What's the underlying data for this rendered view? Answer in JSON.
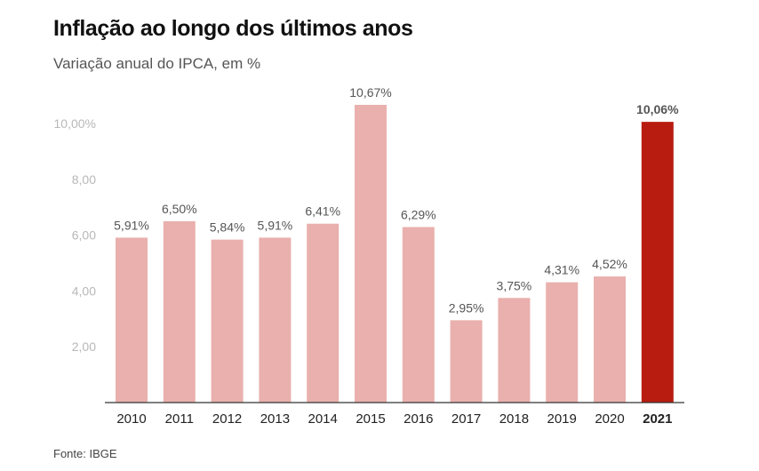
{
  "chart_data": {
    "type": "bar",
    "title": "Inflação ao longo dos últimos anos",
    "subtitle": "Variação anual do IPCA, em %",
    "source": "Fonte: IBGE",
    "categories": [
      "2010",
      "2011",
      "2012",
      "2013",
      "2014",
      "2015",
      "2016",
      "2017",
      "2018",
      "2019",
      "2020",
      "2021"
    ],
    "values": [
      5.91,
      6.5,
      5.84,
      5.91,
      6.41,
      10.67,
      6.29,
      2.95,
      3.75,
      4.31,
      4.52,
      10.06
    ],
    "value_labels": [
      "5,91%",
      "6,50%",
      "5,84%",
      "5,91%",
      "6,41%",
      "10,67%",
      "6,29%",
      "2,95%",
      "3,75%",
      "4,31%",
      "4,52%",
      "10,06%"
    ],
    "yticks": [
      2,
      4,
      6,
      8,
      10
    ],
    "ytick_labels": [
      "2,00",
      "4,00",
      "6,00",
      "8,00",
      "10,00%"
    ],
    "ylim": [
      0,
      11
    ],
    "highlight_index": 11,
    "colors": {
      "bar": "#e9b0ad",
      "highlight": "#b81c10",
      "axis": "#333333"
    },
    "grid": false
  }
}
